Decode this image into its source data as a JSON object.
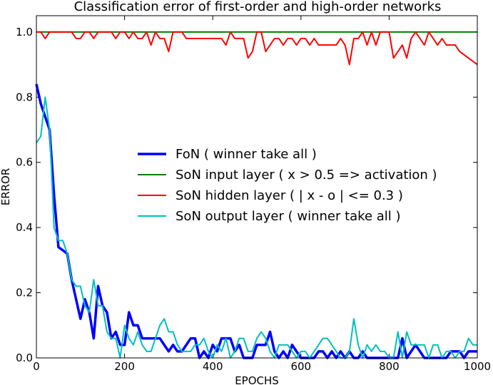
{
  "chart_data": {
    "type": "line",
    "title": "Classification error of first-order and high-order networks",
    "x_label": "EPOCHS",
    "y_label": "ERROR",
    "x": [
      0,
      10,
      20,
      30,
      40,
      50,
      60,
      70,
      80,
      90,
      100,
      110,
      120,
      130,
      140,
      150,
      160,
      170,
      180,
      190,
      200,
      210,
      220,
      230,
      240,
      250,
      260,
      270,
      280,
      290,
      300,
      310,
      320,
      330,
      340,
      350,
      360,
      370,
      380,
      390,
      400,
      410,
      420,
      430,
      440,
      450,
      460,
      470,
      480,
      490,
      500,
      510,
      520,
      530,
      540,
      550,
      560,
      570,
      580,
      590,
      600,
      610,
      620,
      630,
      640,
      650,
      660,
      670,
      680,
      690,
      700,
      710,
      720,
      730,
      740,
      750,
      760,
      770,
      780,
      790,
      800,
      810,
      820,
      830,
      840,
      850,
      860,
      870,
      880,
      890,
      900,
      910,
      920,
      930,
      940,
      950,
      960,
      970,
      980,
      990,
      1000
    ],
    "series": [
      {
        "name": "FoN ( winner take all )",
        "color": "#0000ff",
        "width": 3.5,
        "values": [
          0.84,
          0.78,
          0.74,
          0.7,
          0.5,
          0.34,
          0.33,
          0.32,
          0.24,
          0.18,
          0.12,
          0.18,
          0.14,
          0.06,
          0.22,
          0.16,
          0.14,
          0.06,
          0.08,
          0.04,
          0.04,
          0.14,
          0.1,
          0.1,
          0.06,
          0.06,
          0.06,
          0.06,
          0.06,
          0.04,
          0.02,
          0.04,
          0.02,
          0.02,
          0.04,
          0.06,
          0.06,
          0,
          0.02,
          0,
          0.04,
          0.02,
          0.06,
          0.06,
          0.06,
          0.02,
          0.04,
          0,
          0,
          0,
          0.04,
          0.04,
          0.04,
          0.08,
          0.02,
          0,
          0.02,
          0,
          0.04,
          0.02,
          0,
          0,
          0,
          0,
          0.02,
          0.02,
          0,
          0.02,
          0,
          0.02,
          0,
          0.02,
          0,
          0,
          0.02,
          0,
          0,
          0,
          0,
          0,
          0,
          0,
          0,
          0.06,
          0,
          0.02,
          0.04,
          0.02,
          0,
          0,
          0,
          0,
          0,
          0,
          0.02,
          0.02,
          0.02,
          0,
          0.02,
          0.02,
          0.02
        ]
      },
      {
        "name": "SoN input layer ( x > 0.5 => activation )",
        "color": "#008000",
        "width": 2,
        "values": [
          1,
          1,
          1,
          1,
          1,
          1,
          1,
          1,
          1,
          1,
          1,
          1,
          1,
          1,
          1,
          1,
          1,
          1,
          1,
          1,
          1,
          1,
          1,
          1,
          1,
          1,
          1,
          1,
          1,
          1,
          1,
          1,
          1,
          1,
          1,
          1,
          1,
          1,
          1,
          1,
          1,
          1,
          1,
          1,
          1,
          1,
          1,
          1,
          1,
          1,
          1,
          1,
          1,
          1,
          1,
          1,
          1,
          1,
          1,
          1,
          1,
          1,
          1,
          1,
          1,
          1,
          1,
          1,
          1,
          1,
          1,
          1,
          1,
          1,
          1,
          1,
          1,
          1,
          1,
          1,
          1,
          1,
          1,
          1,
          1,
          1,
          1,
          1,
          1,
          1,
          1,
          1,
          1,
          1,
          1,
          1,
          1,
          1,
          1,
          1,
          1
        ]
      },
      {
        "name": "SoN hidden layer ( | x - o | <= 0.3 )",
        "color": "#ff0000",
        "width": 2,
        "values": [
          1,
          1,
          0.98,
          1,
          1,
          1,
          1,
          1,
          1,
          0.98,
          0.98,
          1,
          1,
          0.98,
          1,
          1,
          1,
          1,
          0.98,
          1,
          1,
          0.98,
          1,
          0.98,
          0.98,
          1,
          0.96,
          1,
          0.98,
          0.98,
          0.94,
          1,
          1,
          1,
          0.98,
          0.98,
          0.98,
          0.98,
          0.98,
          0.98,
          0.98,
          0.98,
          0.98,
          0.96,
          1,
          0.98,
          0.98,
          0.98,
          0.92,
          0.94,
          1,
          1,
          0.94,
          0.96,
          0.98,
          0.98,
          0.96,
          0.98,
          0.98,
          0.96,
          0.98,
          0.98,
          0.96,
          0.98,
          0.96,
          0.96,
          0.96,
          0.96,
          0.96,
          0.98,
          0.96,
          0.9,
          0.98,
          0.98,
          1,
          0.96,
          1,
          0.96,
          1,
          1,
          1,
          0.92,
          0.94,
          0.96,
          0.92,
          0.98,
          1,
          0.98,
          0.96,
          1,
          0.98,
          0.96,
          0.98,
          0.96,
          0.96,
          0.96,
          0.94,
          0.93,
          0.92,
          0.91,
          0.9
        ]
      },
      {
        "name": "SoN output layer ( winner take all )",
        "color": "#00bfbf",
        "width": 2,
        "values": [
          0.66,
          0.68,
          0.8,
          0.7,
          0.4,
          0.36,
          0.36,
          0.32,
          0.24,
          0.22,
          0.22,
          0.16,
          0.14,
          0.24,
          0.16,
          0.16,
          0.08,
          0.06,
          0.06,
          0,
          0.1,
          0.06,
          0.04,
          0.08,
          0.04,
          0.02,
          0.02,
          0.06,
          0.1,
          0.12,
          0.08,
          0.08,
          0.04,
          0.02,
          0.02,
          0.02,
          0.04,
          0.04,
          0.06,
          0.02,
          0,
          0.04,
          0.02,
          0.06,
          0,
          0.02,
          0.06,
          0.06,
          0.02,
          0.02,
          0.06,
          0.08,
          0.06,
          0.02,
          0,
          0.04,
          0.04,
          0.04,
          0.02,
          0,
          0.02,
          0.02,
          0,
          0.02,
          0.04,
          0.06,
          0.06,
          0.04,
          0.02,
          0,
          0,
          0.02,
          0.12,
          0.04,
          0,
          0.04,
          0.02,
          0.04,
          0.02,
          0.02,
          0,
          0,
          0.08,
          0,
          0.08,
          0.04,
          0.04,
          0.04,
          0.04,
          0,
          0.04,
          0.04,
          0,
          0.02,
          0.02,
          0,
          0.02,
          0.02,
          0.06,
          0.04,
          0.04
        ]
      }
    ],
    "xlim": [
      0,
      1000
    ],
    "xticks": [
      0,
      200,
      400,
      600,
      800,
      1000
    ],
    "ylim": [
      0,
      1.05
    ],
    "yticks": [
      {
        "value": 0,
        "label": "0.0"
      },
      0.2,
      0.4,
      0.6,
      0.8,
      {
        "value": 1,
        "label": "1.0"
      }
    ],
    "legend": "center right"
  }
}
